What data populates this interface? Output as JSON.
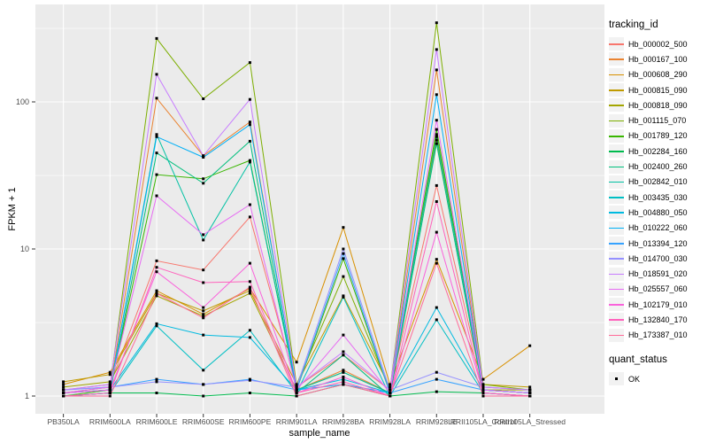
{
  "axes": {
    "y_label": "FPKM + 1",
    "x_label": "sample_name",
    "y_tick_labels": [
      "100",
      "10",
      "1"
    ],
    "tick_text_color": "#4D4D4D",
    "panel_bg": "#EBEBEB",
    "grid_color": "#FFFFFF"
  },
  "legend": {
    "tracking_title": "tracking_id",
    "quant_title": "quant_status",
    "quant_items": [
      {
        "label": "OK",
        "marker": "black-square"
      }
    ]
  },
  "chart_data": {
    "type": "line",
    "yscale": "log10",
    "y_ticks": [
      1,
      10,
      100
    ],
    "y_minor_ticks": [
      3.16,
      31.6,
      316
    ],
    "ylim_log10": [
      -0.13,
      2.66
    ],
    "grid": true,
    "legend_position": "right",
    "point_marker": "black-square",
    "title": "",
    "xlabel": "sample_name",
    "ylabel": "FPKM + 1",
    "categories": [
      "PB350LA",
      "RRIM600LA",
      "RRIM600LE",
      "RRIM600SE",
      "RRIM600PE",
      "RRIM901LA",
      "RRIM928BA",
      "RRIM928LA",
      "RRIM928LE",
      "RRII105LA_Control",
      "RRII105LA_Stressed"
    ],
    "series": [
      {
        "name": "Hb_000002_500",
        "color": "#F8766D",
        "values": [
          1.1,
          1.2,
          8.3,
          7.2,
          16.5,
          1.15,
          1.9,
          1.1,
          27,
          1.15,
          1.1
        ]
      },
      {
        "name": "Hb_000167_100",
        "color": "#EA8331",
        "values": [
          1.05,
          1.1,
          106,
          43,
          73,
          1.1,
          1.5,
          1.05,
          165,
          1.1,
          1.05
        ]
      },
      {
        "name": "Hb_000608_290",
        "color": "#D89000",
        "values": [
          1.2,
          1.45,
          5.2,
          3.6,
          5.4,
          1.7,
          14.0,
          1.2,
          8.5,
          1.3,
          2.2
        ]
      },
      {
        "name": "Hb_000815_090",
        "color": "#C09B00",
        "values": [
          1.25,
          1.4,
          5.0,
          3.8,
          5.2,
          1.2,
          4.8,
          1.15,
          55,
          1.2,
          1.15
        ]
      },
      {
        "name": "Hb_000818_090",
        "color": "#A3A500",
        "values": [
          1.15,
          1.25,
          4.8,
          3.5,
          5.0,
          1.1,
          1.45,
          1.05,
          60,
          1.1,
          1.1
        ]
      },
      {
        "name": "Hb_001115_070",
        "color": "#7CAE00",
        "values": [
          1.05,
          1.15,
          270,
          105,
          185,
          1.2,
          6.5,
          1.1,
          345,
          1.2,
          1.1
        ]
      },
      {
        "name": "Hb_001789_120",
        "color": "#39B600",
        "values": [
          1.0,
          1.1,
          32,
          30,
          40,
          1.1,
          8.6,
          1.05,
          65,
          1.1,
          1.05
        ]
      },
      {
        "name": "Hb_002284_160",
        "color": "#00BB4E",
        "values": [
          1.0,
          1.05,
          1.05,
          1.0,
          1.05,
          1.0,
          1.2,
          1.0,
          1.07,
          1.05,
          1.0
        ]
      },
      {
        "name": "Hb_002400_260",
        "color": "#00BF7D",
        "values": [
          1.0,
          1.05,
          45,
          28,
          54,
          1.05,
          1.9,
          1.0,
          52,
          1.05,
          1.0
        ]
      },
      {
        "name": "Hb_002842_010",
        "color": "#00C1A3",
        "values": [
          1.05,
          1.1,
          60,
          11.5,
          39,
          1.1,
          1.45,
          1.05,
          58,
          1.1,
          1.05
        ]
      },
      {
        "name": "Hb_003435_030",
        "color": "#00BFC4",
        "values": [
          1.0,
          1.05,
          3.0,
          1.5,
          2.8,
          1.05,
          4.7,
          1.0,
          3.3,
          1.05,
          1.0
        ]
      },
      {
        "name": "Hb_004880_050",
        "color": "#00BAE0",
        "values": [
          1.05,
          1.1,
          3.1,
          2.6,
          2.5,
          1.1,
          1.3,
          1.05,
          4.0,
          1.1,
          1.05
        ]
      },
      {
        "name": "Hb_010222_060",
        "color": "#00B0F6",
        "values": [
          1.05,
          1.1,
          58,
          42,
          70,
          1.1,
          1.2,
          1.05,
          112,
          1.1,
          1.05
        ]
      },
      {
        "name": "Hb_013394_120",
        "color": "#35A2FF",
        "values": [
          1.1,
          1.15,
          1.3,
          1.2,
          1.3,
          1.1,
          9.3,
          1.05,
          1.3,
          1.1,
          1.05
        ]
      },
      {
        "name": "Hb_014700_030",
        "color": "#9590FF",
        "values": [
          1.1,
          1.15,
          1.25,
          1.2,
          1.28,
          1.15,
          10.0,
          1.1,
          1.45,
          1.15,
          1.1
        ]
      },
      {
        "name": "Hb_018591_020",
        "color": "#C77CFF",
        "values": [
          1.1,
          1.2,
          154,
          43,
          104,
          1.15,
          2.0,
          1.1,
          227,
          1.15,
          1.1
        ]
      },
      {
        "name": "Hb_025557_060",
        "color": "#E76BF3",
        "values": [
          1.05,
          1.15,
          23,
          12.5,
          20,
          1.1,
          2.6,
          1.05,
          75,
          1.1,
          1.05
        ]
      },
      {
        "name": "Hb_102179_010",
        "color": "#FA62DB",
        "values": [
          1.05,
          1.1,
          7.0,
          4.0,
          8.0,
          1.05,
          1.35,
          1.0,
          13,
          1.05,
          1.0
        ]
      },
      {
        "name": "Hb_132840_170",
        "color": "#FF62BC",
        "values": [
          1.0,
          1.05,
          7.5,
          5.9,
          6.0,
          1.05,
          1.25,
          1.0,
          21,
          1.05,
          1.0
        ]
      },
      {
        "name": "Hb_173387_010",
        "color": "#FF6A98",
        "values": [
          1.0,
          1.0,
          5.0,
          3.4,
          5.5,
          1.0,
          1.2,
          1.0,
          8.0,
          1.0,
          1.0
        ]
      }
    ]
  }
}
